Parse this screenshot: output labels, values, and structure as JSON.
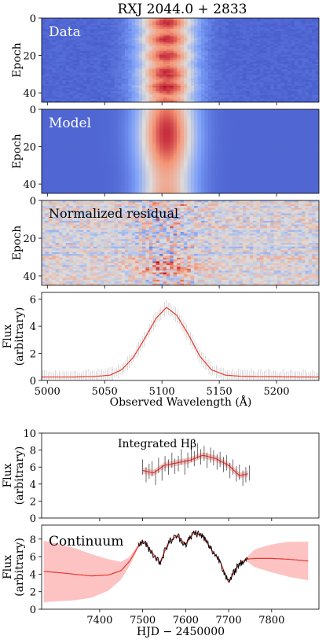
{
  "figure": {
    "title": "RXJ 2044.0 + 2833"
  },
  "chart_data": [
    {
      "type": "heatmap",
      "panel": "data",
      "label": "Data",
      "ylabel": "Epoch",
      "ylim": [
        45,
        0
      ],
      "yticks": [
        "0",
        "20",
        "40"
      ],
      "colormap": "coolwarm",
      "xlim": [
        4995,
        5237
      ],
      "line_center": 5104,
      "line_sigma": 17
    },
    {
      "type": "heatmap",
      "panel": "model",
      "label": "Model",
      "ylabel": "Epoch",
      "ylim": [
        45,
        0
      ],
      "yticks": [
        "0",
        "20",
        "40"
      ],
      "colormap": "coolwarm",
      "xlim": [
        4995,
        5237
      ],
      "line_center": 5104,
      "line_sigma": 17
    },
    {
      "type": "heatmap",
      "panel": "residual",
      "label": "Normalized residual",
      "ylabel": "Epoch",
      "ylim": [
        45,
        0
      ],
      "yticks": [
        "0",
        "20",
        "40"
      ],
      "colormap": "coolwarm",
      "xlim": [
        4995,
        5237
      ]
    },
    {
      "type": "line",
      "panel": "spectrum",
      "ylabel_lines": [
        "Flux",
        "(arbitrary)"
      ],
      "xlabel": "Observed Wavelength (Å)",
      "xlim": [
        4995,
        5237
      ],
      "ylim": [
        0,
        6.5
      ],
      "xticks": [
        "5000",
        "5050",
        "5100",
        "5150",
        "5200"
      ],
      "yticks": [
        "0",
        "2",
        "4",
        "6"
      ],
      "series": [
        {
          "color": "#e8392f",
          "x": [
            4995,
            5020,
            5040,
            5055,
            5065,
            5075,
            5085,
            5095,
            5104,
            5113,
            5123,
            5133,
            5143,
            5155,
            5170,
            5190,
            5237
          ],
          "y": [
            0.25,
            0.25,
            0.28,
            0.4,
            0.8,
            1.7,
            3.1,
            4.6,
            5.4,
            4.8,
            3.4,
            1.8,
            0.8,
            0.4,
            0.3,
            0.27,
            0.25
          ]
        }
      ],
      "error_bars": {
        "color": "#c8c8c8",
        "half_width": 0.45
      }
    },
    {
      "type": "line",
      "panel": "hbeta",
      "label": "Integrated Hβ",
      "ylabel_lines": [
        "Flux",
        "(arbitrary)"
      ],
      "xlim": [
        7265,
        7910
      ],
      "ylim": [
        0,
        10
      ],
      "yticks": [
        "0",
        "2",
        "4",
        "6",
        "8",
        "10"
      ],
      "series": [
        {
          "color": "#e8392f",
          "x": [
            7500,
            7525,
            7550,
            7580,
            7610,
            7640,
            7670,
            7700,
            7725,
            7745
          ],
          "y": [
            5.6,
            5.3,
            6.2,
            6.5,
            6.8,
            7.4,
            7.0,
            6.2,
            5.0,
            5.2
          ]
        }
      ],
      "data_points": {
        "color": "#444444",
        "x": [
          7500,
          7508,
          7515,
          7522,
          7530,
          7537,
          7545,
          7552,
          7560,
          7568,
          7575,
          7583,
          7590,
          7598,
          7605,
          7613,
          7620,
          7628,
          7635,
          7643,
          7650,
          7658,
          7665,
          7673,
          7680,
          7688,
          7695,
          7703,
          7710,
          7718,
          7725,
          7733,
          7740,
          7748
        ],
        "y": [
          6.0,
          5.1,
          5.5,
          5.8,
          4.8,
          6.2,
          5.3,
          6.4,
          6.0,
          6.8,
          6.1,
          6.4,
          7.2,
          6.0,
          6.8,
          7.5,
          7.0,
          7.9,
          7.2,
          7.6,
          6.8,
          7.4,
          7.1,
          6.6,
          6.9,
          6.3,
          6.5,
          5.6,
          6.0,
          5.2,
          5.4,
          4.7,
          5.1,
          5.3
        ],
        "err": 0.9
      }
    },
    {
      "type": "area",
      "panel": "continuum",
      "label": "Continuum",
      "ylabel_lines": [
        "Flux",
        "(arbitrary)"
      ],
      "xlabel": "HJD − 2450000",
      "xlim": [
        7265,
        7910
      ],
      "ylim": [
        0,
        9.6
      ],
      "xticks": [
        "7400",
        "7500",
        "7600",
        "7700",
        "7800"
      ],
      "yticks": [
        "0",
        "2",
        "4",
        "6",
        "8"
      ],
      "model": {
        "color": "#e8392f",
        "band_color": "#fdc3c3",
        "x": [
          7270,
          7300,
          7340,
          7380,
          7420,
          7450,
          7470,
          7490,
          7500,
          7520,
          7540,
          7560,
          7580,
          7600,
          7620,
          7640,
          7660,
          7680,
          7700,
          7720,
          7740,
          7760,
          7800,
          7840,
          7885
        ],
        "y": [
          4.3,
          4.2,
          4.0,
          3.8,
          3.9,
          4.4,
          5.5,
          7.2,
          7.8,
          6.6,
          5.3,
          7.6,
          8.4,
          7.4,
          8.8,
          8.3,
          6.8,
          5.5,
          3.0,
          4.9,
          5.7,
          5.8,
          5.8,
          5.7,
          5.5
        ],
        "band_half": [
          3.5,
          3.3,
          3.0,
          2.5,
          1.8,
          1.0,
          0.5,
          0.2,
          0.1,
          0.1,
          0.1,
          0.1,
          0.1,
          0.1,
          0.1,
          0.1,
          0.1,
          0.1,
          0.1,
          0.1,
          0.15,
          1.0,
          1.6,
          2.0,
          2.2
        ]
      },
      "observations": {
        "color": "#000000",
        "x_start": 7490,
        "x_end": 7745
      }
    }
  ]
}
